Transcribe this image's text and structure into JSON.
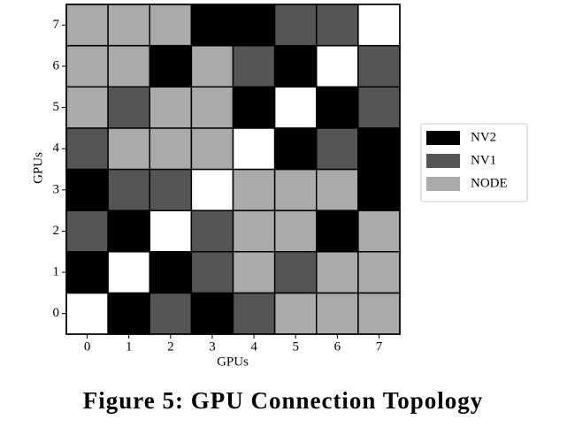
{
  "chart_data": {
    "type": "heatmap",
    "x_label": "GPUs",
    "y_label": "GPUs",
    "xticks": [
      0,
      1,
      2,
      3,
      4,
      5,
      6,
      7
    ],
    "yticks": [
      0,
      1,
      2,
      3,
      4,
      5,
      6,
      7
    ],
    "xlim": [
      -0.5,
      7.5
    ],
    "ylim": [
      -0.5,
      7.5
    ],
    "series": [
      {
        "name": "NV2",
        "color": "#000000"
      },
      {
        "name": "NV1",
        "color": "#555555"
      },
      {
        "name": "NODE",
        "color": "#aaaaaa"
      }
    ],
    "empty_color": "#ffffff",
    "z": [
      [
        null,
        "NV2",
        "NV1",
        "NV2",
        "NV1",
        "NODE",
        "NODE",
        "NODE"
      ],
      [
        "NV2",
        null,
        "NV2",
        "NV1",
        "NODE",
        "NV1",
        "NODE",
        "NODE"
      ],
      [
        "NV1",
        "NV2",
        null,
        "NV1",
        "NODE",
        "NODE",
        "NV2",
        "NODE"
      ],
      [
        "NV2",
        "NV1",
        "NV1",
        null,
        "NODE",
        "NODE",
        "NODE",
        "NV2"
      ],
      [
        "NV1",
        "NODE",
        "NODE",
        "NODE",
        null,
        "NV2",
        "NV1",
        "NV2"
      ],
      [
        "NODE",
        "NV1",
        "NODE",
        "NODE",
        "NV2",
        null,
        "NV2",
        "NV1"
      ],
      [
        "NODE",
        "NODE",
        "NV2",
        "NODE",
        "NV1",
        "NV2",
        null,
        "NV1"
      ],
      [
        "NODE",
        "NODE",
        "NODE",
        "NV2",
        "NV2",
        "NV1",
        "NV1",
        null
      ]
    ],
    "caption": "Figure 5: GPU Connection Topology"
  }
}
